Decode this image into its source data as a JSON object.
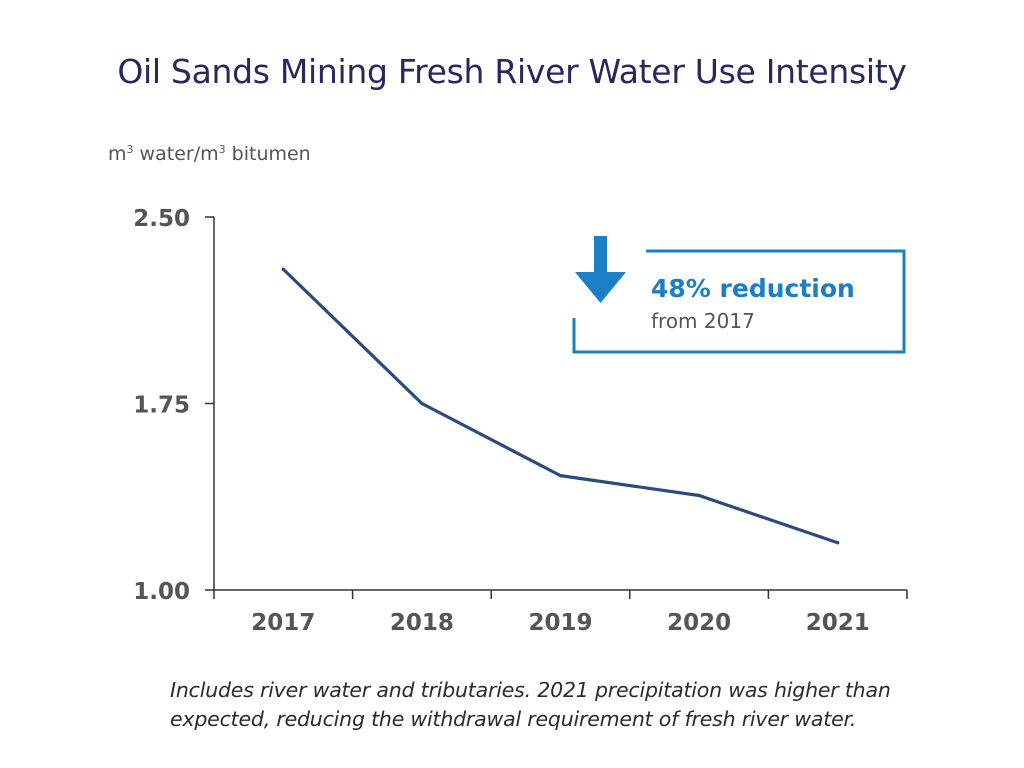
{
  "colors": {
    "title": "#26285e",
    "line": "#2b4a7e",
    "accent": "#1a7fc4",
    "text": "#555555"
  },
  "chart_data": {
    "type": "line",
    "title": "Oil Sands Mining Fresh River Water Use Intensity",
    "ylabel_parts": {
      "a": "m",
      "b": "3",
      "c": " water/m",
      "d": "3",
      "e": " bitumen"
    },
    "xlabel": "",
    "categories": [
      "2017",
      "2018",
      "2019",
      "2020",
      "2021"
    ],
    "series": [
      {
        "name": "Fresh river water use intensity",
        "values": [
          2.29,
          1.75,
          1.46,
          1.38,
          1.19
        ]
      }
    ],
    "ylim": [
      1.0,
      2.5
    ],
    "yticks": [
      "1.00",
      "1.75",
      "2.50"
    ],
    "grid": false,
    "annotation": {
      "headline": "48% reduction",
      "subtext": "from 2017"
    }
  },
  "footnote": {
    "line1": "Includes river water and tributaries. 2021 precipitation was higher than",
    "line2": "expected, reducing the withdrawal requirement of fresh river water."
  }
}
